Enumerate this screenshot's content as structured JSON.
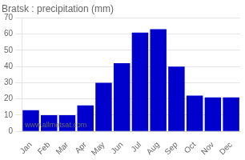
{
  "chart_data": {
    "type": "bar",
    "title": "Bratsk : precipitation (mm)",
    "categories": [
      "Jan",
      "Feb",
      "Mar",
      "Apr",
      "May",
      "Jun",
      "Jul",
      "Aug",
      "Sep",
      "Oct",
      "Nov",
      "Dec"
    ],
    "values": [
      13,
      10,
      10,
      16,
      30,
      42,
      61,
      63,
      40,
      22,
      21,
      21
    ],
    "color": "#0000cc",
    "ylim": [
      0,
      70
    ],
    "yticks": [
      0,
      10,
      20,
      30,
      40,
      50,
      60,
      70
    ],
    "grid": true,
    "annotations": [
      "www.allmetsat.com"
    ]
  }
}
